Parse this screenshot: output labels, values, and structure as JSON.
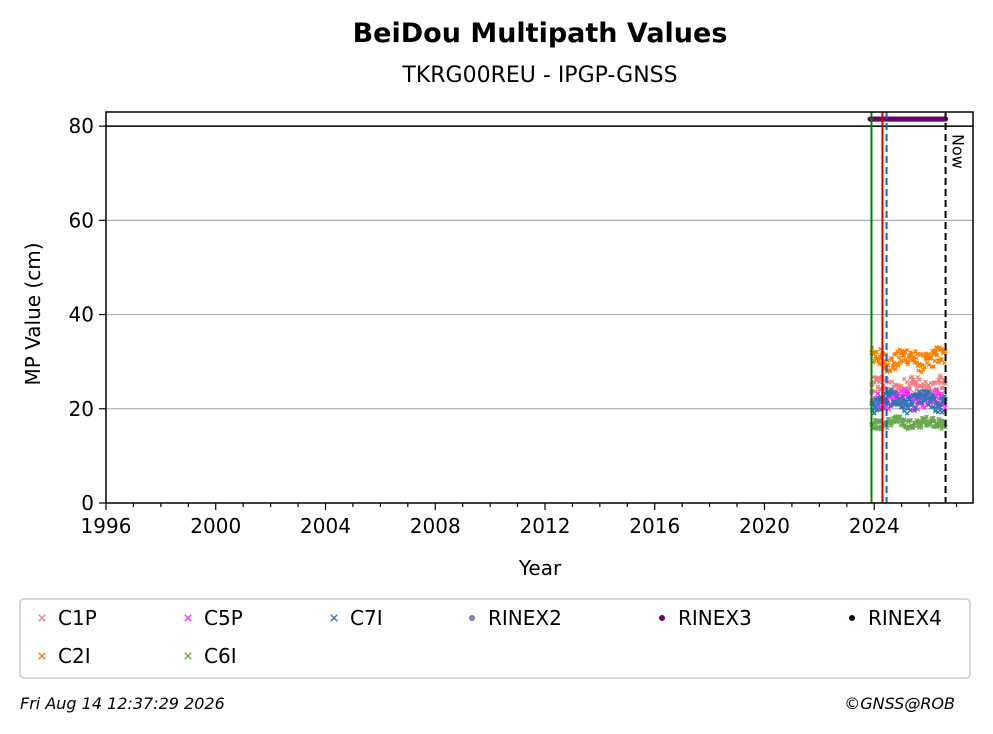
{
  "chart_data": {
    "type": "scatter",
    "title": "BeiDou Multipath Values",
    "subtitle": "TKRG00REU - IPGP-GNSS",
    "xlabel": "Year",
    "ylabel": "MP Value (cm)",
    "xlim": [
      1996,
      2027.6
    ],
    "ylim": [
      0,
      83
    ],
    "x_ticks": [
      "1996",
      "2000",
      "2004",
      "2008",
      "2012",
      "2016",
      "2020",
      "2024"
    ],
    "y_ticks": [
      "0",
      "20",
      "40",
      "60",
      "80"
    ],
    "grid": "horizontal",
    "legend_position": "bottom",
    "series": [
      {
        "name": "C1P",
        "color": "#f08080",
        "marker": "x",
        "x_range": [
          2023.9,
          2026.6
        ],
        "mean": 24.5,
        "spread": 2.5
      },
      {
        "name": "C2I",
        "color": "#ff8000",
        "marker": "x",
        "x_range": [
          2023.9,
          2026.6
        ],
        "mean": 30.5,
        "spread": 2.5
      },
      {
        "name": "C5P",
        "color": "#ff33ff",
        "marker": "x",
        "x_range": [
          2023.9,
          2026.6
        ],
        "mean": 22.0,
        "spread": 2.0
      },
      {
        "name": "C6I",
        "color": "#6aa84f",
        "marker": "x",
        "x_range": [
          2023.9,
          2026.6
        ],
        "mean": 17.0,
        "spread": 1.3
      },
      {
        "name": "C7I",
        "color": "#2e75b6",
        "marker": "x",
        "x_range": [
          2023.9,
          2026.6
        ],
        "mean": 21.5,
        "spread": 2.2
      },
      {
        "name": "RINEX2",
        "color": "#7f7fbf",
        "marker": "o",
        "x_range": [],
        "mean": null,
        "spread": null
      },
      {
        "name": "RINEX3",
        "color": "#6a006a",
        "marker": "o",
        "x_range": [
          2023.85,
          2026.6
        ],
        "mean": 81.5,
        "spread": 0
      },
      {
        "name": "RINEX4",
        "color": "#1a001a",
        "marker": "o",
        "x_range": [],
        "mean": null,
        "spread": null
      }
    ],
    "vertical_lines": [
      {
        "x": 2023.9,
        "color": "#008000",
        "style": "solid"
      },
      {
        "x": 2024.3,
        "color": "#d00000",
        "style": "solid"
      },
      {
        "x": 2024.45,
        "color": "#1f5fbf",
        "style": "dashed"
      },
      {
        "x": 2026.6,
        "color": "#000000",
        "style": "dashed",
        "label": "Now"
      }
    ],
    "horizontal_lines": [
      {
        "y": 80,
        "color": "#000000",
        "style": "solid"
      }
    ]
  },
  "footer": {
    "timestamp": "Fri Aug 14 12:37:29 2026",
    "credit": "©GNSS@ROB"
  }
}
